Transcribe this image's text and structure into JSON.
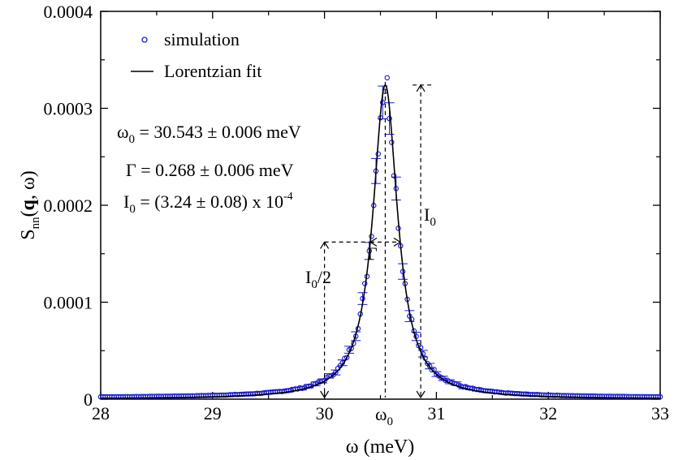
{
  "chart_data": {
    "type": "scatter",
    "xlabel": "ω (meV)",
    "ylabel": "S_nn(q, ω)",
    "xlim": [
      28,
      33
    ],
    "ylim": [
      0,
      0.0004
    ],
    "x_ticks": [
      "28",
      "29",
      "30",
      "31",
      "32",
      "33"
    ],
    "x_tick_values": [
      28,
      29,
      30,
      31,
      32,
      33
    ],
    "y_ticks": [
      "0",
      "0.0001",
      "0.0002",
      "0.0003",
      "0.0004"
    ],
    "y_tick_values": [
      0,
      0.0001,
      0.0002,
      0.0003,
      0.0004
    ],
    "grid": false,
    "legend_position": "top-left",
    "series": [
      {
        "name": "simulation",
        "kind": "markers",
        "color": "#1a1ad6",
        "x_range": [
          28.0,
          33.0
        ],
        "step": 0.02,
        "model": "lorentzian",
        "errorbars": true
      },
      {
        "name": "Lorentzian fit",
        "kind": "line",
        "color": "#000000",
        "model": "lorentzian",
        "omega0": 30.543,
        "gamma": 0.268,
        "I0": 0.000324
      }
    ],
    "annotations": {
      "omega0_text": "ω",
      "omega0_sub": "0",
      "omega0_rest": " = 30.543 ± 0.006 meV",
      "gamma_text": "Γ = 0.268 ± 0.006 meV",
      "I0_text": "I",
      "I0_sub": "0",
      "I0_rest": " = (3.24 ± 0.08) x 10",
      "I0_exp": "-4",
      "gamma_arrow_label": "Γ",
      "I0_arrow_label": "I",
      "I0_arrow_sub": "0",
      "half_label_main": "I",
      "half_label_sub": "0",
      "half_label_rest": "/2",
      "omega0_axis_label": "ω",
      "omega0_axis_sub": "0"
    }
  }
}
